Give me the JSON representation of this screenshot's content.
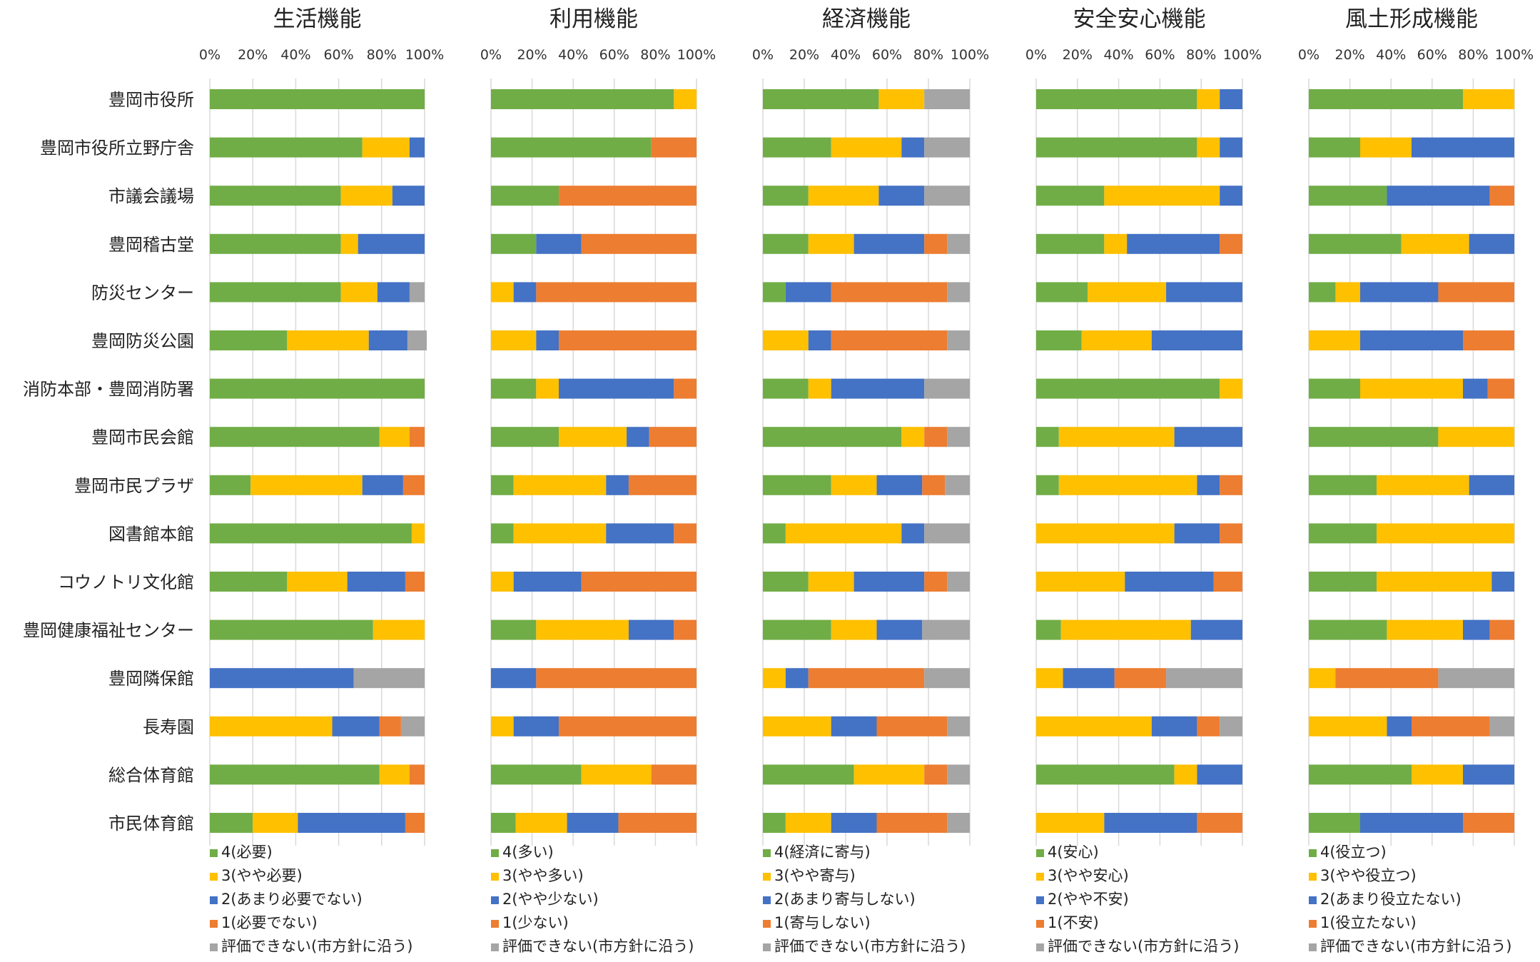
{
  "colors": {
    "c4": "#70AD47",
    "c3": "#FFC000",
    "c2": "#4472C4",
    "c1": "#ED7D31",
    "c0": "#A5A5A5",
    "grid": "#D9D9D9"
  },
  "chart_data": [
    {
      "type": "bar",
      "orientation": "horizontal-stacked-100",
      "title": "生活機能",
      "categories": [
        "豊岡市役所",
        "豊岡市役所立野庁舎",
        "市議会議場",
        "豊岡稽古堂",
        "防災センター",
        "豊岡防災公園",
        "消防本部・豊岡消防署",
        "豊岡市民会館",
        "豊岡市民プラザ",
        "図書館本館",
        "コウノトリ文化館",
        "豊岡健康福祉センター",
        "豊岡隣保館",
        "長寿園",
        "総合体育館",
        "市民体育館"
      ],
      "xticks": [
        "0%",
        "20%",
        "40%",
        "60%",
        "80%",
        "100%"
      ],
      "xlim": [
        0,
        100
      ],
      "legend_placement": "bottom",
      "series": [
        {
          "name": "4(必要)",
          "values": [
            100,
            71,
            61,
            61,
            61,
            36,
            100,
            79,
            19,
            94,
            36,
            76,
            0,
            0,
            79,
            20
          ]
        },
        {
          "name": "3(やや必要)",
          "values": [
            0,
            22,
            24,
            8,
            17,
            38,
            0,
            14,
            52,
            6,
            28,
            24,
            0,
            57,
            14,
            21
          ]
        },
        {
          "name": "2(あまり必要でない)",
          "values": [
            0,
            7,
            15,
            31,
            15,
            18,
            0,
            0,
            19,
            0,
            27,
            0,
            67,
            22,
            0,
            50
          ]
        },
        {
          "name": "1(必要でない)",
          "values": [
            0,
            0,
            0,
            0,
            0,
            0,
            0,
            7,
            10,
            0,
            9,
            0,
            0,
            10,
            7,
            9
          ]
        },
        {
          "name": "評価できない(市方針に沿う)",
          "values": [
            0,
            0,
            0,
            0,
            7,
            9,
            0,
            0,
            0,
            0,
            0,
            0,
            33,
            11,
            0,
            0
          ]
        }
      ]
    },
    {
      "type": "bar",
      "orientation": "horizontal-stacked-100",
      "title": "利用機能",
      "categories": [
        "豊岡市役所",
        "豊岡市役所立野庁舎",
        "市議会議場",
        "豊岡稽古堂",
        "防災センター",
        "豊岡防災公園",
        "消防本部・豊岡消防署",
        "豊岡市民会館",
        "豊岡市民プラザ",
        "図書館本館",
        "コウノトリ文化館",
        "豊岡健康福祉センター",
        "豊岡隣保館",
        "長寿園",
        "総合体育館",
        "市民体育館"
      ],
      "xticks": [
        "0%",
        "20%",
        "40%",
        "60%",
        "80%",
        "100%"
      ],
      "xlim": [
        0,
        100
      ],
      "legend_placement": "bottom",
      "series": [
        {
          "name": "4(多い)",
          "values": [
            89,
            78,
            33,
            22,
            0,
            0,
            22,
            33,
            11,
            11,
            0,
            22,
            0,
            0,
            44,
            12
          ]
        },
        {
          "name": "3(やや多い)",
          "values": [
            11,
            0,
            0,
            0,
            11,
            22,
            11,
            33,
            45,
            45,
            11,
            45,
            0,
            11,
            34,
            25
          ]
        },
        {
          "name": "2(やや少ない)",
          "values": [
            0,
            0,
            0,
            22,
            11,
            11,
            56,
            11,
            11,
            33,
            33,
            22,
            22,
            22,
            0,
            25
          ]
        },
        {
          "name": "1(少ない)",
          "values": [
            0,
            22,
            67,
            56,
            78,
            67,
            11,
            23,
            33,
            11,
            56,
            11,
            78,
            67,
            22,
            38
          ]
        },
        {
          "name": "評価できない(市方針に沿う)",
          "values": [
            0,
            0,
            0,
            0,
            0,
            0,
            0,
            0,
            0,
            0,
            0,
            0,
            0,
            0,
            0,
            0
          ]
        }
      ]
    },
    {
      "type": "bar",
      "orientation": "horizontal-stacked-100",
      "title": "経済機能",
      "categories": [
        "豊岡市役所",
        "豊岡市役所立野庁舎",
        "市議会議場",
        "豊岡稽古堂",
        "防災センター",
        "豊岡防災公園",
        "消防本部・豊岡消防署",
        "豊岡市民会館",
        "豊岡市民プラザ",
        "図書館本館",
        "コウノトリ文化館",
        "豊岡健康福祉センター",
        "豊岡隣保館",
        "長寿園",
        "総合体育館",
        "市民体育館"
      ],
      "xticks": [
        "0%",
        "20%",
        "40%",
        "60%",
        "80%",
        "100%"
      ],
      "xlim": [
        0,
        100
      ],
      "legend_placement": "bottom",
      "series": [
        {
          "name": "4(経済に寄与)",
          "values": [
            56,
            33,
            22,
            22,
            11,
            0,
            22,
            67,
            33,
            11,
            22,
            33,
            0,
            0,
            44,
            11
          ]
        },
        {
          "name": "3(やや寄与)",
          "values": [
            22,
            34,
            34,
            22,
            0,
            22,
            11,
            11,
            22,
            56,
            22,
            22,
            11,
            33,
            34,
            22
          ]
        },
        {
          "name": "2(あまり寄与しない)",
          "values": [
            0,
            11,
            22,
            34,
            22,
            11,
            45,
            0,
            22,
            11,
            34,
            22,
            11,
            22,
            0,
            22
          ]
        },
        {
          "name": "1(寄与しない)",
          "values": [
            0,
            0,
            0,
            11,
            56,
            56,
            0,
            11,
            11,
            0,
            11,
            0,
            56,
            34,
            11,
            34
          ]
        },
        {
          "name": "評価できない(市方針に沿う)",
          "values": [
            22,
            22,
            22,
            11,
            11,
            11,
            22,
            11,
            12,
            22,
            11,
            23,
            22,
            11,
            11,
            11
          ]
        }
      ]
    },
    {
      "type": "bar",
      "orientation": "horizontal-stacked-100",
      "title": "安全安心機能",
      "categories": [
        "豊岡市役所",
        "豊岡市役所立野庁舎",
        "市議会議場",
        "豊岡稽古堂",
        "防災センター",
        "豊岡防災公園",
        "消防本部・豊岡消防署",
        "豊岡市民会館",
        "豊岡市民プラザ",
        "図書館本館",
        "コウノトリ文化館",
        "豊岡健康福祉センター",
        "豊岡隣保館",
        "長寿園",
        "総合体育館",
        "市民体育館"
      ],
      "xticks": [
        "0%",
        "20%",
        "40%",
        "60%",
        "80%",
        "100%"
      ],
      "xlim": [
        0,
        100
      ],
      "legend_placement": "bottom",
      "series": [
        {
          "name": "4(安心)",
          "values": [
            78,
            78,
            33,
            33,
            25,
            22,
            89,
            11,
            11,
            0,
            0,
            12,
            0,
            0,
            67,
            0
          ]
        },
        {
          "name": "3(やや安心)",
          "values": [
            11,
            11,
            56,
            11,
            38,
            34,
            11,
            56,
            67,
            67,
            43,
            63,
            13,
            56,
            11,
            33
          ]
        },
        {
          "name": "2(やや不安)",
          "values": [
            11,
            11,
            11,
            45,
            37,
            44,
            0,
            33,
            11,
            22,
            43,
            25,
            25,
            22,
            22,
            45
          ]
        },
        {
          "name": "1(不安)",
          "values": [
            0,
            0,
            0,
            11,
            0,
            0,
            0,
            0,
            11,
            11,
            14,
            0,
            25,
            11,
            0,
            22
          ]
        },
        {
          "name": "評価できない(市方針に沿う)",
          "values": [
            0,
            0,
            0,
            0,
            0,
            0,
            0,
            0,
            0,
            0,
            0,
            0,
            37,
            11,
            0,
            0
          ]
        }
      ]
    },
    {
      "type": "bar",
      "orientation": "horizontal-stacked-100",
      "title": "風土形成機能",
      "categories": [
        "豊岡市役所",
        "豊岡市役所立野庁舎",
        "市議会議場",
        "豊岡稽古堂",
        "防災センター",
        "豊岡防災公園",
        "消防本部・豊岡消防署",
        "豊岡市民会館",
        "豊岡市民プラザ",
        "図書館本館",
        "コウノトリ文化館",
        "豊岡健康福祉センター",
        "豊岡隣保館",
        "長寿園",
        "総合体育館",
        "市民体育館"
      ],
      "xticks": [
        "0%",
        "20%",
        "40%",
        "60%",
        "80%",
        "100%"
      ],
      "xlim": [
        0,
        100
      ],
      "legend_placement": "bottom",
      "series": [
        {
          "name": "4(役立つ)",
          "values": [
            75,
            25,
            38,
            45,
            13,
            0,
            25,
            63,
            33,
            33,
            33,
            38,
            0,
            0,
            50,
            25
          ]
        },
        {
          "name": "3(やや役立つ)",
          "values": [
            25,
            25,
            0,
            33,
            12,
            25,
            50,
            37,
            45,
            67,
            56,
            37,
            13,
            38,
            25,
            0
          ]
        },
        {
          "name": "2(あまり役立たない)",
          "values": [
            0,
            50,
            50,
            22,
            38,
            50,
            12,
            0,
            22,
            0,
            11,
            13,
            0,
            12,
            25,
            50
          ]
        },
        {
          "name": "1(役立たない)",
          "values": [
            0,
            0,
            12,
            0,
            37,
            25,
            13,
            0,
            0,
            0,
            0,
            12,
            50,
            38,
            0,
            25
          ]
        },
        {
          "name": "評価できない(市方針に沿う)",
          "values": [
            0,
            0,
            0,
            0,
            0,
            0,
            0,
            0,
            0,
            0,
            0,
            0,
            37,
            12,
            0,
            0
          ]
        }
      ]
    }
  ]
}
